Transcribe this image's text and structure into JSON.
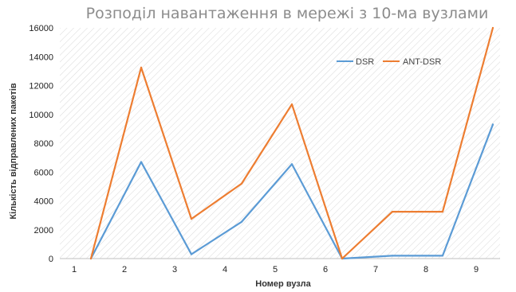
{
  "chart_data": {
    "type": "line",
    "title": "Розподіл навантаження в мережі з 10-ма вузлами",
    "xlabel": "Номер вузла",
    "ylabel": "Кількість відправлених пакетів",
    "categories": [
      "1",
      "2",
      "3",
      "4",
      "5",
      "6",
      "7",
      "8",
      "9"
    ],
    "ylim": [
      0,
      16000
    ],
    "yticks": [
      0,
      2000,
      4000,
      6000,
      8000,
      10000,
      12000,
      14000,
      16000
    ],
    "grid": false,
    "background": "diagonal-hatch",
    "legend_position": "top-right",
    "series": [
      {
        "name": "DSR",
        "color": "#5b9bd5",
        "values": [
          0,
          6700,
          300,
          2550,
          6550,
          0,
          200,
          200,
          9300
        ]
      },
      {
        "name": "ANT-DSR",
        "color": "#ed7d31",
        "values": [
          0,
          13250,
          2750,
          5200,
          10700,
          0,
          3250,
          3250,
          16000
        ]
      }
    ]
  }
}
